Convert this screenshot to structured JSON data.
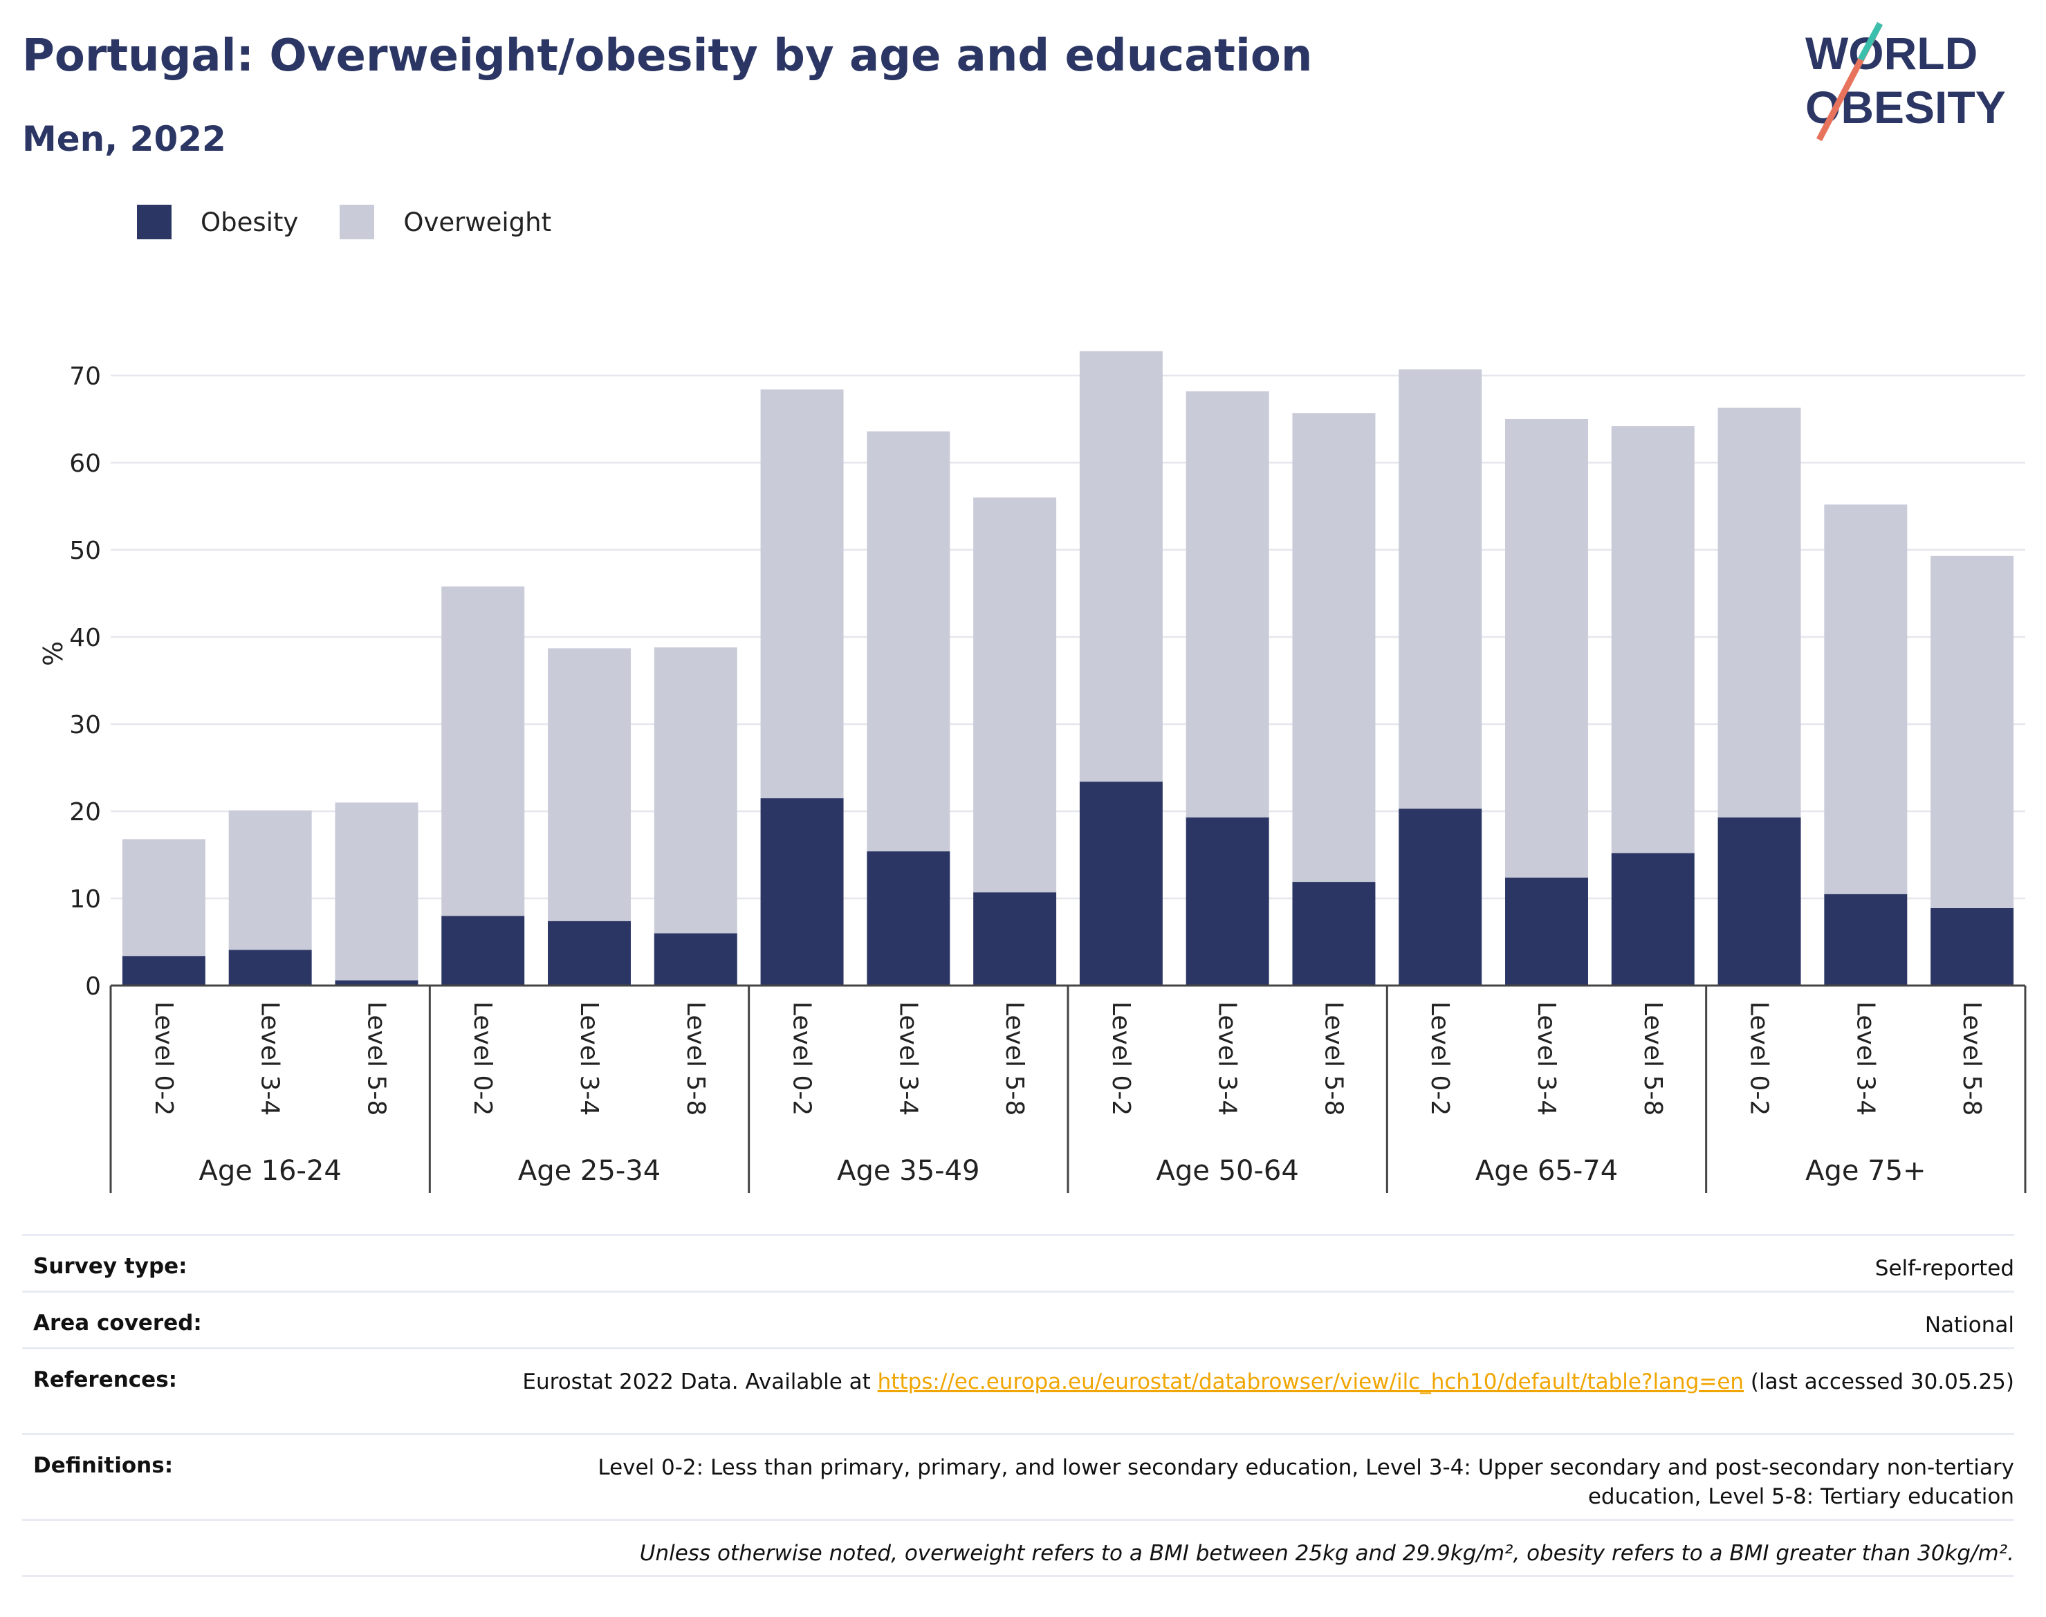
{
  "title": "Portugal: Overweight/obesity by age and education",
  "subtitle": "Men, 2022",
  "logo": {
    "line1": "WORLD",
    "line2": "OBESITY"
  },
  "legend": [
    {
      "name": "Obesity",
      "color": "#2b3664"
    },
    {
      "name": "Overweight",
      "color": "#c9cbd8"
    }
  ],
  "chart_data": {
    "type": "bar",
    "stacked": true,
    "ylabel": "%",
    "ylim": [
      0,
      75
    ],
    "yticks": [
      0,
      10,
      20,
      30,
      40,
      50,
      60,
      70
    ],
    "grid": true,
    "legend_position": "top-left",
    "groups": [
      "Age 16-24",
      "Age 25-34",
      "Age 35-49",
      "Age 50-64",
      "Age 65-74",
      "Age 75+"
    ],
    "levels": [
      "Level 0-2",
      "Level 3-4",
      "Level 5-8"
    ],
    "series": [
      {
        "name": "Obesity",
        "color": "#2b3664",
        "values": [
          3.4,
          4.1,
          0.6,
          8.0,
          7.4,
          6.0,
          21.5,
          15.4,
          10.7,
          23.4,
          19.3,
          11.9,
          20.3,
          12.4,
          15.2,
          19.3,
          10.5,
          8.9
        ]
      },
      {
        "name": "Overweight",
        "color": "#c9cbd8",
        "values": [
          13.4,
          16.0,
          20.4,
          37.8,
          31.3,
          32.8,
          46.9,
          48.2,
          45.3,
          49.4,
          48.9,
          53.8,
          50.4,
          52.6,
          49.0,
          47.0,
          44.7,
          40.4
        ]
      }
    ]
  },
  "info": [
    {
      "label": "Survey type:",
      "value": "Self-reported"
    },
    {
      "label": "Area covered:",
      "value": "National"
    },
    {
      "label": "References:",
      "prefix": "Eurostat 2022 Data. Available at ",
      "link": "https://ec.europa.eu/eurostat/databrowser/view/ilc_hch10/default/table?lang=en",
      "suffix": " (last accessed 30.05.25)"
    },
    {
      "label": "Definitions:",
      "value": "Level 0-2: Less than primary, primary, and lower secondary education, Level 3-4: Upper secondary and post-secondary non-tertiary education, Level 5-8: Tertiary education"
    }
  ],
  "note": "Unless otherwise noted, overweight refers to a BMI between 25kg and 29.9kg/m², obesity refers to a BMI greater than 30kg/m²."
}
